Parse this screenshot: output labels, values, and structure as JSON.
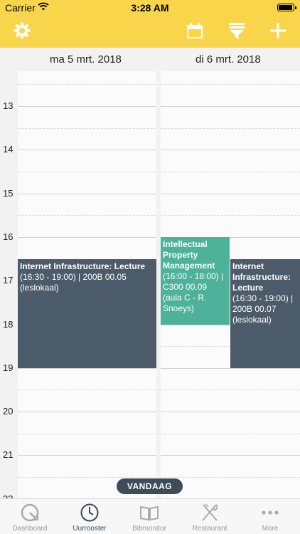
{
  "status_bar": {
    "carrier": "Carrier",
    "time": "3:28 AM"
  },
  "toolbar": {
    "color": "#f8d54a",
    "buttons": [
      {
        "name": "settings",
        "icon": "gear-icon"
      },
      {
        "name": "calendar",
        "icon": "calendar-icon"
      },
      {
        "name": "filter",
        "icon": "filter-icon"
      },
      {
        "name": "add",
        "icon": "plus-icon"
      }
    ]
  },
  "days": [
    {
      "label": "ma 5 mrt. 2018"
    },
    {
      "label": "di 6 mrt. 2018"
    }
  ],
  "hours": [
    "13",
    "14",
    "15",
    "16",
    "17",
    "18",
    "19",
    "20",
    "21",
    "22"
  ],
  "events": [
    {
      "day": 0,
      "title": "Internet Infrastructure: Lecture",
      "details": "(16:30 - 19:00) | 200B 00.05 (leslokaal)",
      "start": "16:30",
      "end": "19:00",
      "color": "#4c5b69"
    },
    {
      "day": 1,
      "title": "Intellectual Property Management",
      "details": "(16:00 - 18:00) | C300 00.09 (aula C - R. Snoeys)",
      "start": "16:00",
      "end": "18:00",
      "color": "#4db299"
    },
    {
      "day": 1,
      "title": "Internet Infrastructure: Lecture",
      "details": "(16:30 - 19:00) | 200B 00.07 (leslokaal)",
      "start": "16:30",
      "end": "19:00",
      "color": "#4c5b69"
    }
  ],
  "today_button": "VANDAAG",
  "tabs": [
    {
      "label": "Dashboard",
      "icon": "dashboard-icon",
      "active": false
    },
    {
      "label": "Uurrooster",
      "icon": "clock-icon",
      "active": true
    },
    {
      "label": "Bibmonitor",
      "icon": "book-icon",
      "active": false
    },
    {
      "label": "Restaurant",
      "icon": "fork-knife-icon",
      "active": false
    },
    {
      "label": "More",
      "icon": "more-icon",
      "active": false
    }
  ]
}
